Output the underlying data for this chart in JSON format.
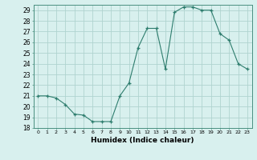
{
  "x": [
    0,
    1,
    2,
    3,
    4,
    5,
    6,
    7,
    8,
    9,
    10,
    11,
    12,
    13,
    14,
    15,
    16,
    17,
    18,
    19,
    20,
    21,
    22,
    23
  ],
  "y": [
    21,
    21,
    20.8,
    20.2,
    19.3,
    19.2,
    18.6,
    18.6,
    18.6,
    21.0,
    22.2,
    25.5,
    27.3,
    27.3,
    23.5,
    28.8,
    29.3,
    29.3,
    29.0,
    29.0,
    26.8,
    26.2,
    24.0,
    23.5
  ],
  "xlabel": "Humidex (Indice chaleur)",
  "ylim": [
    18,
    29.5
  ],
  "xlim": [
    -0.5,
    23.5
  ],
  "yticks": [
    18,
    19,
    20,
    21,
    22,
    23,
    24,
    25,
    26,
    27,
    28,
    29
  ],
  "xticks": [
    0,
    1,
    2,
    3,
    4,
    5,
    6,
    7,
    8,
    9,
    10,
    11,
    12,
    13,
    14,
    15,
    16,
    17,
    18,
    19,
    20,
    21,
    22,
    23
  ],
  "line_color": "#2e7d6e",
  "marker_color": "#2e7d6e",
  "bg_color": "#d8f0ee",
  "grid_major_color": "#b0d4d0",
  "grid_minor_color": "#f0d0d0"
}
